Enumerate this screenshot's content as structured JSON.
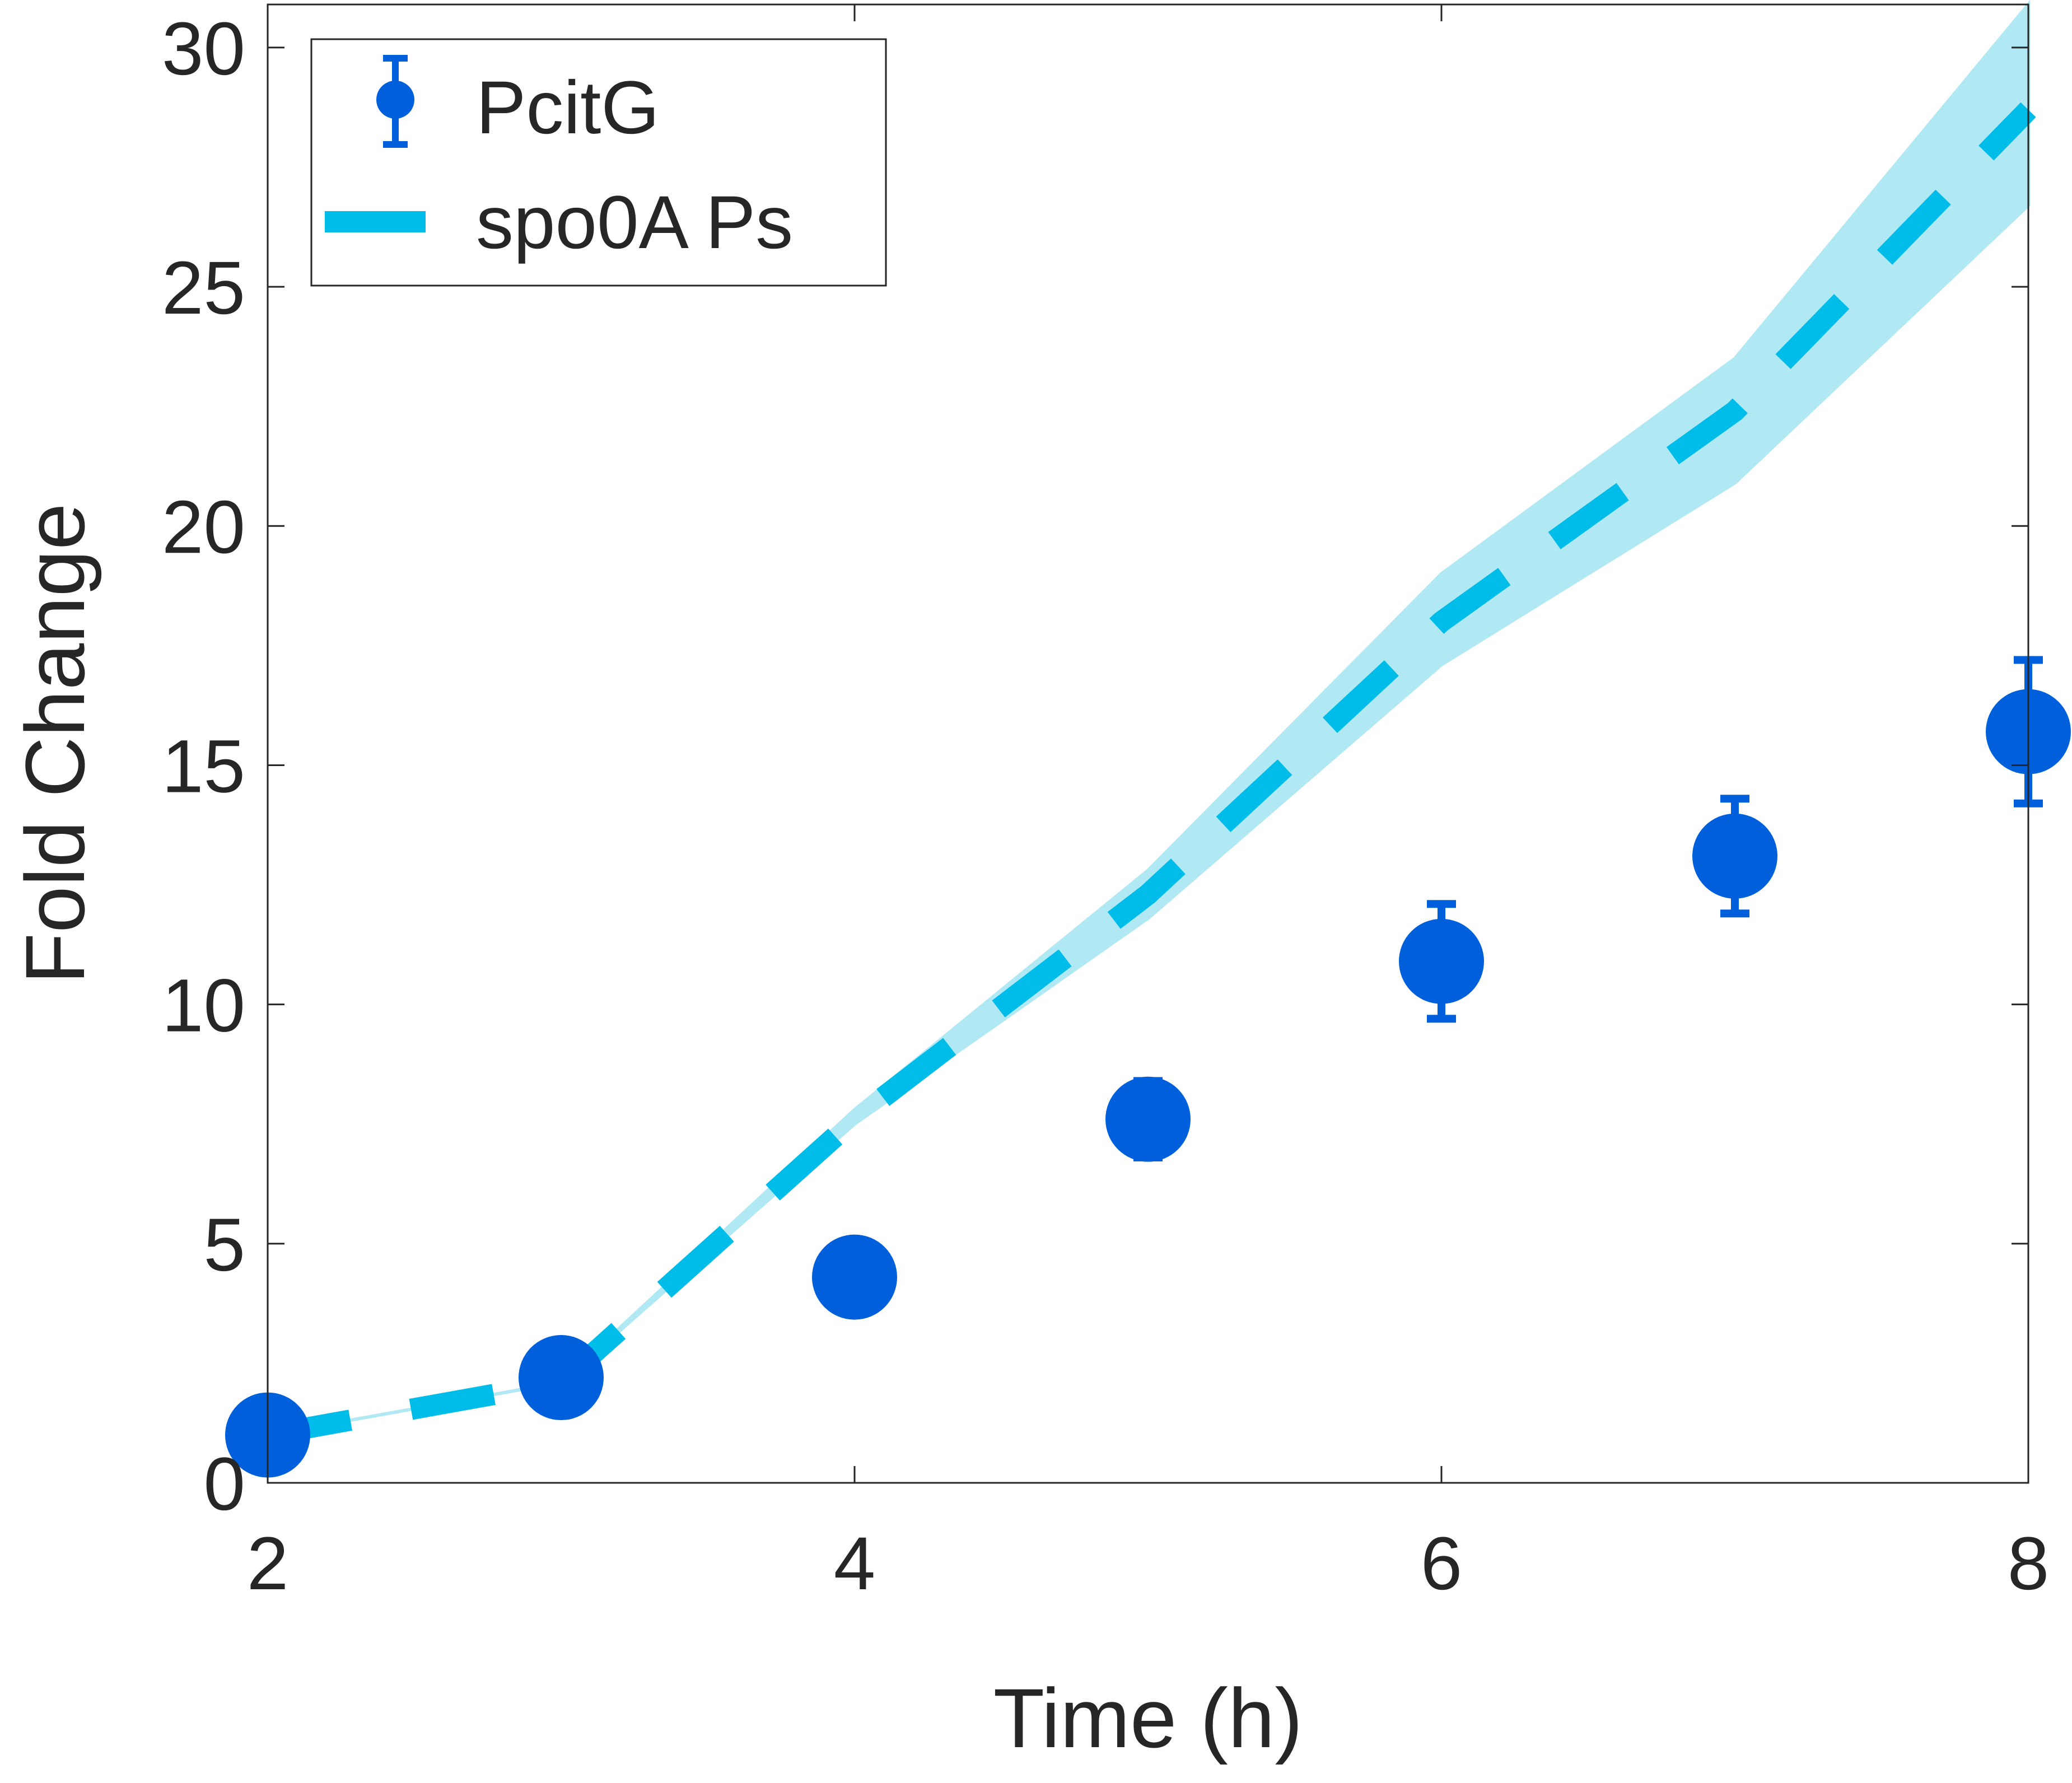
{
  "chart_data": {
    "type": "line",
    "title": "",
    "xlabel": "Time (h)",
    "ylabel": "Fold Change",
    "xlim": [
      2,
      8
    ],
    "ylim": [
      0,
      30.9
    ],
    "xticks": [
      2,
      4,
      6,
      8
    ],
    "yticks": [
      0,
      5,
      10,
      15,
      20,
      25,
      30
    ],
    "grid": false,
    "legend_position": "top-left",
    "series": [
      {
        "name": "PcitG",
        "kind": "scatter-errorbar",
        "color": "#0060DC",
        "x": [
          2,
          3,
          4,
          5,
          6,
          7,
          8
        ],
        "y": [
          1.0,
          2.2,
          4.3,
          7.6,
          10.9,
          13.1,
          15.7
        ],
        "err": [
          0,
          0,
          0,
          0.8,
          1.2,
          1.2,
          1.5
        ]
      },
      {
        "name": "spo0A Ps",
        "kind": "dashed-line-with-band",
        "color": "#00BCE8",
        "band_color": "#B0E8F4",
        "x": [
          2,
          3,
          4,
          5,
          6,
          7,
          8
        ],
        "y": [
          1.0,
          2.1,
          7.6,
          12.3,
          18.0,
          22.4,
          28.7
        ],
        "band_lower": [
          1.0,
          2.1,
          7.5,
          11.8,
          17.1,
          20.9,
          26.7
        ],
        "band_upper": [
          1.0,
          2.1,
          7.8,
          12.8,
          19.0,
          23.5,
          30.9
        ]
      }
    ]
  }
}
